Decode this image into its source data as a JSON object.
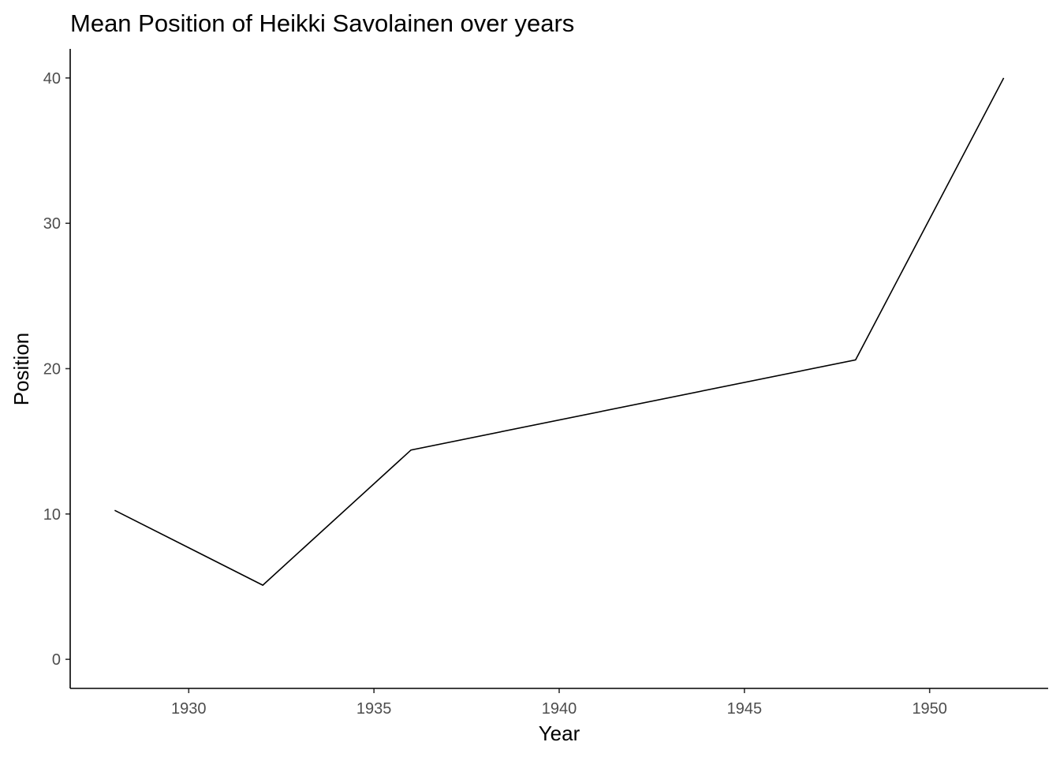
{
  "chart_data": {
    "type": "line",
    "title": "Mean Position of Heikki Savolainen over years",
    "xlabel": "Year",
    "ylabel": "Position",
    "xlim": [
      1926.8,
      1953.2
    ],
    "ylim": [
      -2,
      42
    ],
    "x_ticks": [
      1930,
      1935,
      1940,
      1945,
      1950
    ],
    "y_ticks": [
      0,
      10,
      20,
      30,
      40
    ],
    "grid": false,
    "legend": "none",
    "line_color": "#000000",
    "series": [
      {
        "x": [
          1928,
          1932,
          1936,
          1948,
          1952
        ],
        "values": [
          10.25,
          5.1,
          14.4,
          20.6,
          40.0
        ]
      }
    ]
  }
}
